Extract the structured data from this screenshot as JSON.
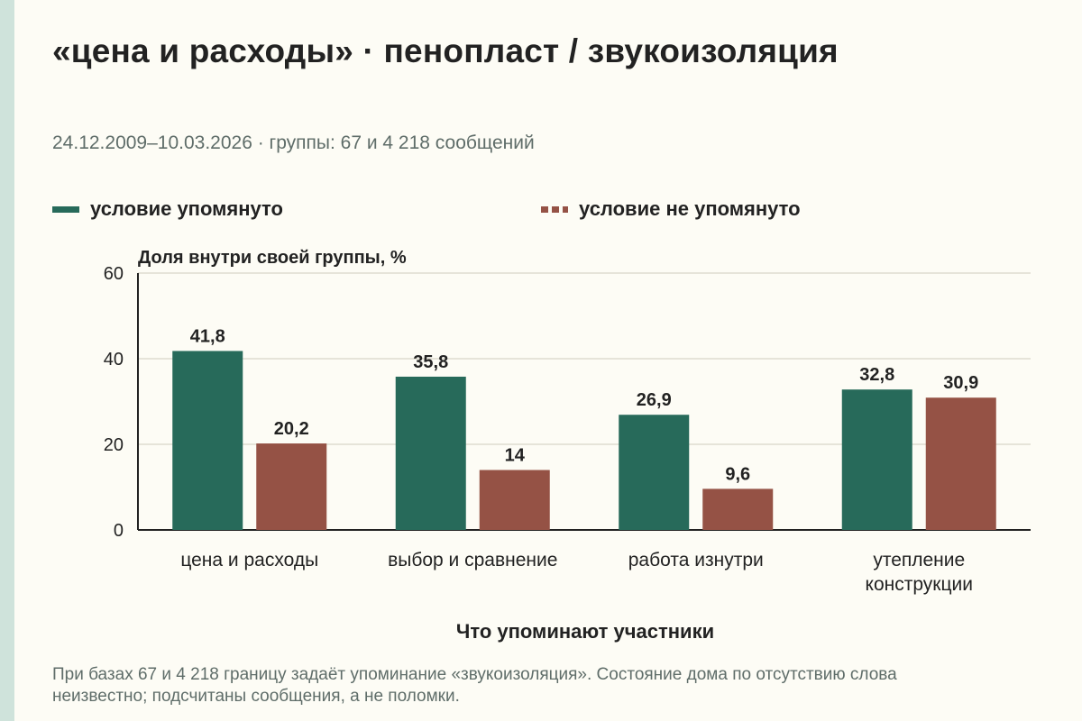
{
  "title": "«цена и расходы» · пенопласт / звукоизоляция",
  "subtitle": "24.12.2009–10.03.2026 · группы: 67 и 4 218 сообщений",
  "footnote": "При базах 67 и 4 218 границу задаёт упоминание «звукоизоляция». Состояние дома по отсутствию слова неизвестно; подсчитаны сообщения, а не поломки.",
  "colors": {
    "mentioned": "#276a5a",
    "not_mentioned": "#955245",
    "gridline": "#dedbd0",
    "axis": "#222222",
    "accent_strip": "#cfe3db"
  },
  "chart_data": {
    "type": "bar",
    "title": "«цена и расходы» · пенопласт / звукоизоляция",
    "ylabel": "Доля внутри своей группы, %",
    "xlabel": "Что упоминают участники",
    "ylim": [
      0,
      60
    ],
    "yticks": [
      0,
      20,
      40,
      60
    ],
    "grid": true,
    "legend_position": "top",
    "categories": [
      [
        "цена и расходы"
      ],
      [
        "выбор и сравнение"
      ],
      [
        "работа изнутри"
      ],
      [
        "утепление",
        "конструкции"
      ]
    ],
    "series": [
      {
        "name": "условие упомянуто",
        "color": "#276a5a",
        "values": [
          41.8,
          35.8,
          26.9,
          32.8
        ],
        "labels": [
          "41,8",
          "35,8",
          "26,9",
          "32,8"
        ]
      },
      {
        "name": "условие не упомянуто",
        "color": "#955245",
        "values": [
          20.2,
          14,
          9.6,
          30.9
        ],
        "labels": [
          "20,2",
          "14",
          "9,6",
          "30,9"
        ]
      }
    ]
  }
}
